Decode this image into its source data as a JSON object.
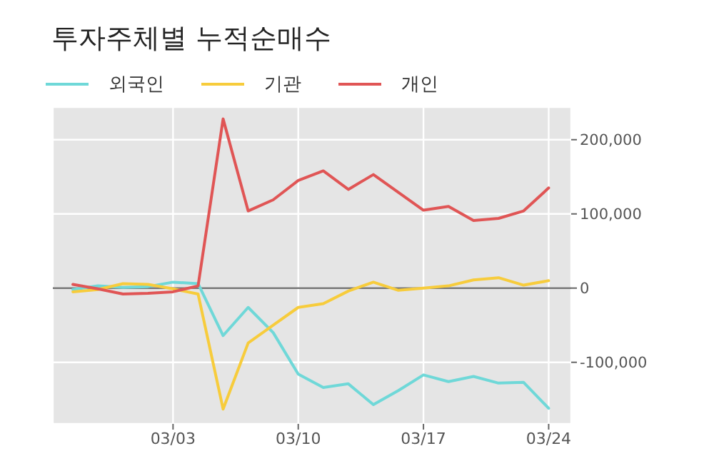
{
  "chart_data": {
    "type": "line",
    "title": "투자주체별 누적순매수",
    "categories": [
      null,
      null,
      null,
      null,
      "03/03",
      null,
      null,
      null,
      null,
      "03/10",
      null,
      null,
      null,
      null,
      "03/17",
      null,
      null,
      null,
      null,
      "03/24"
    ],
    "series": [
      {
        "name": "외국인",
        "color": "#6fd8d8",
        "values": [
          -2000,
          3000,
          1000,
          2000,
          8000,
          6000,
          -64000,
          -26000,
          -60000,
          -116000,
          -134000,
          -129000,
          -157000,
          -138000,
          -117000,
          -126000,
          -119000,
          -128000,
          -127000,
          -162000
        ]
      },
      {
        "name": "기관",
        "color": "#f7cc3c",
        "values": [
          -5000,
          -2000,
          6000,
          5000,
          -1000,
          -8000,
          -163000,
          -74000,
          -50000,
          -26000,
          -21000,
          -4000,
          8000,
          -3000,
          0,
          3000,
          11000,
          14000,
          4000,
          10000
        ]
      },
      {
        "name": "개인",
        "color": "#e05555",
        "values": [
          5000,
          -1000,
          -8000,
          -7000,
          -5000,
          3000,
          228000,
          104000,
          119000,
          145000,
          158000,
          133000,
          153000,
          129000,
          105000,
          110000,
          91000,
          94000,
          104000,
          135000
        ]
      }
    ],
    "ylim": [
      -183000,
      244000
    ],
    "yticks": [
      {
        "value": -100000,
        "label": "-100,000"
      },
      0,
      {
        "value": 100000,
        "label": "100,000"
      },
      {
        "value": 200000,
        "label": "200,000"
      }
    ],
    "ref_lines": [
      {
        "axis": "y",
        "value": 0,
        "color": "#777777"
      }
    ],
    "grid": true,
    "legend": "top left",
    "marker": "none",
    "line_style": "solid"
  }
}
